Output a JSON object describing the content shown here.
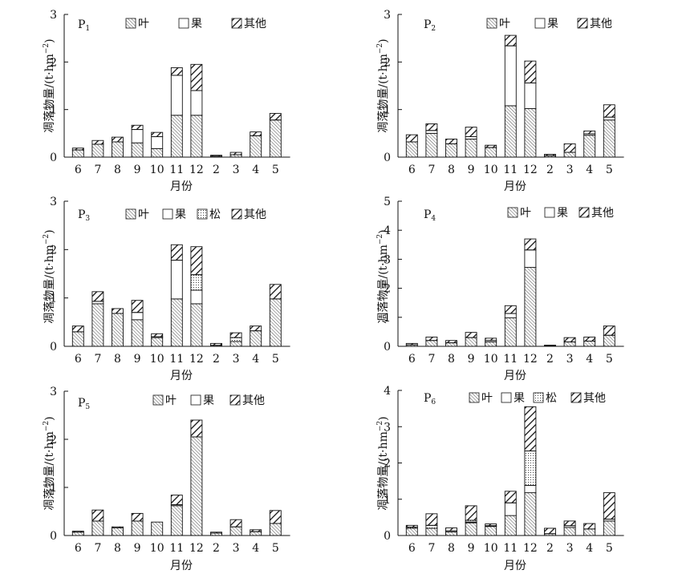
{
  "figure": {
    "y_axis_label": "凋落物量/(t·hm",
    "y_axis_label_sup": "−2",
    "y_axis_label_close": ")",
    "x_axis_label": "月份",
    "panel_labels": [
      "P",
      "P",
      "P",
      "P",
      "P",
      "P"
    ],
    "panel_label_subs": [
      "1",
      "2",
      "3",
      "4",
      "5",
      "6"
    ]
  },
  "colors": {
    "stroke": "#111111",
    "background": "#ffffff"
  },
  "legend_patterns": {
    "叶": "leaf-hatch",
    "果": "blank",
    "松": "dots",
    "其他": "coarse-hatch"
  },
  "chart_data": [
    {
      "id": "P1",
      "type": "bar",
      "stacked": true,
      "categories": [
        "6",
        "7",
        "8",
        "9",
        "10",
        "11",
        "12",
        "2",
        "3",
        "4",
        "5"
      ],
      "ylim": [
        0,
        3
      ],
      "yticks": [
        "0",
        "1",
        "2",
        "3"
      ],
      "xlabel": "月份",
      "ylabel": "凋落物量/(t·hm−2)",
      "legend": [
        "叶",
        "果",
        "其他"
      ],
      "series": [
        {
          "name": "叶",
          "values": [
            0.15,
            0.27,
            0.32,
            0.3,
            0.18,
            0.88,
            0.88,
            0.02,
            0.05,
            0.45,
            0.78
          ]
        },
        {
          "name": "果",
          "values": [
            0,
            0,
            0,
            0.28,
            0.25,
            0.84,
            0.52,
            0,
            0,
            0,
            0
          ]
        },
        {
          "name": "其他",
          "values": [
            0.04,
            0.08,
            0.1,
            0.09,
            0.09,
            0.16,
            0.55,
            0.02,
            0.05,
            0.08,
            0.14
          ]
        }
      ]
    },
    {
      "id": "P2",
      "type": "bar",
      "stacked": true,
      "categories": [
        "6",
        "7",
        "8",
        "9",
        "10",
        "11",
        "12",
        "2",
        "3",
        "4",
        "5"
      ],
      "ylim": [
        0,
        3
      ],
      "yticks": [
        "0",
        "1",
        "2",
        "3"
      ],
      "xlabel": "月份",
      "ylabel": "凋落物量/(t·hm−2)",
      "legend": [
        "叶",
        "果",
        "其他"
      ],
      "series": [
        {
          "name": "叶",
          "values": [
            0.32,
            0.5,
            0.28,
            0.38,
            0.2,
            1.08,
            1.02,
            0.03,
            0.1,
            0.46,
            0.78
          ]
        },
        {
          "name": "果",
          "values": [
            0,
            0.06,
            0,
            0.05,
            0,
            1.26,
            0.54,
            0,
            0,
            0.03,
            0.06
          ]
        },
        {
          "name": "其他",
          "values": [
            0.15,
            0.14,
            0.1,
            0.2,
            0.05,
            0.22,
            0.46,
            0.03,
            0.18,
            0.06,
            0.26
          ]
        }
      ]
    },
    {
      "id": "P3",
      "type": "bar",
      "stacked": true,
      "categories": [
        "6",
        "7",
        "8",
        "9",
        "10",
        "11",
        "12",
        "2",
        "3",
        "4",
        "5"
      ],
      "ylim": [
        0,
        3
      ],
      "yticks": [
        "0",
        "1",
        "2",
        "3"
      ],
      "xlabel": "月份",
      "ylabel": "凋落物量/(t·hm−2)",
      "legend": [
        "叶",
        "果",
        "松",
        "其他"
      ],
      "series": [
        {
          "name": "叶",
          "values": [
            0.3,
            0.88,
            0.68,
            0.55,
            0.18,
            0.98,
            0.88,
            0.02,
            0.1,
            0.32,
            0.98
          ]
        },
        {
          "name": "果",
          "values": [
            0,
            0.05,
            0,
            0.15,
            0.02,
            0.8,
            0.28,
            0,
            0,
            0,
            0
          ]
        },
        {
          "name": "松",
          "values": [
            0,
            0,
            0,
            0,
            0,
            0,
            0.32,
            0,
            0.08,
            0,
            0
          ]
        },
        {
          "name": "其他",
          "values": [
            0.12,
            0.2,
            0.1,
            0.25,
            0.06,
            0.32,
            0.58,
            0.04,
            0.1,
            0.1,
            0.3
          ]
        }
      ]
    },
    {
      "id": "P4",
      "type": "bar",
      "stacked": true,
      "categories": [
        "6",
        "7",
        "8",
        "9",
        "10",
        "11",
        "12",
        "2",
        "3",
        "4",
        "5"
      ],
      "ylim": [
        0,
        5
      ],
      "yticks": [
        "0",
        "1",
        "2",
        "3",
        "4",
        "5"
      ],
      "xlabel": "月份",
      "ylabel": "凋落物量/(t·hm−2)",
      "legend": [
        "叶",
        "果",
        "其他"
      ],
      "series": [
        {
          "name": "叶",
          "values": [
            0.05,
            0.2,
            0.12,
            0.3,
            0.15,
            0.98,
            2.72,
            0.02,
            0.15,
            0.18,
            0.38
          ]
        },
        {
          "name": "果",
          "values": [
            0,
            0,
            0,
            0,
            0.05,
            0.15,
            0.6,
            0,
            0,
            0,
            0
          ]
        },
        {
          "name": "其他",
          "values": [
            0.05,
            0.12,
            0.08,
            0.18,
            0.08,
            0.27,
            0.38,
            0.02,
            0.15,
            0.14,
            0.32
          ]
        }
      ]
    },
    {
      "id": "P5",
      "type": "bar",
      "stacked": true,
      "categories": [
        "6",
        "7",
        "8",
        "9",
        "10",
        "11",
        "12",
        "2",
        "3",
        "4",
        "5"
      ],
      "ylim": [
        0,
        3
      ],
      "yticks": [
        "0",
        "1",
        "2",
        "3"
      ],
      "xlabel": "月份",
      "ylabel": "凋落物量/(t·hm−2)",
      "legend": [
        "叶",
        "果",
        "其他"
      ],
      "series": [
        {
          "name": "叶",
          "values": [
            0.07,
            0.3,
            0.16,
            0.3,
            0.28,
            0.62,
            2.05,
            0.05,
            0.18,
            0.08,
            0.25
          ]
        },
        {
          "name": "果",
          "values": [
            0,
            0,
            0,
            0,
            0,
            0.02,
            0,
            0,
            0,
            0,
            0
          ]
        },
        {
          "name": "其他",
          "values": [
            0.02,
            0.23,
            0.02,
            0.16,
            0,
            0.2,
            0.35,
            0.02,
            0.15,
            0.04,
            0.27
          ]
        }
      ]
    },
    {
      "id": "P6",
      "type": "bar",
      "stacked": true,
      "categories": [
        "6",
        "7",
        "8",
        "9",
        "10",
        "11",
        "12",
        "2",
        "3",
        "4",
        "5"
      ],
      "ylim": [
        0,
        4
      ],
      "yticks": [
        "0",
        "1",
        "2",
        "3",
        "4"
      ],
      "xlabel": "月份",
      "ylabel": "凋落物量/(t·hm−2)",
      "legend": [
        "叶",
        "果",
        "松",
        "其他"
      ],
      "series": [
        {
          "name": "叶",
          "values": [
            0.2,
            0.2,
            0.1,
            0.35,
            0.25,
            0.55,
            1.18,
            0.05,
            0.22,
            0.18,
            0.4
          ]
        },
        {
          "name": "果",
          "values": [
            0,
            0,
            0,
            0.02,
            0.02,
            0.35,
            0.2,
            0,
            0,
            0,
            0.05
          ]
        },
        {
          "name": "松",
          "values": [
            0.03,
            0.08,
            0.03,
            0.05,
            0,
            0,
            0.95,
            0,
            0.05,
            0,
            0
          ]
        },
        {
          "name": "其他",
          "values": [
            0.05,
            0.32,
            0.08,
            0.4,
            0.05,
            0.32,
            1.22,
            0.15,
            0.13,
            0.15,
            0.73
          ]
        }
      ]
    }
  ]
}
